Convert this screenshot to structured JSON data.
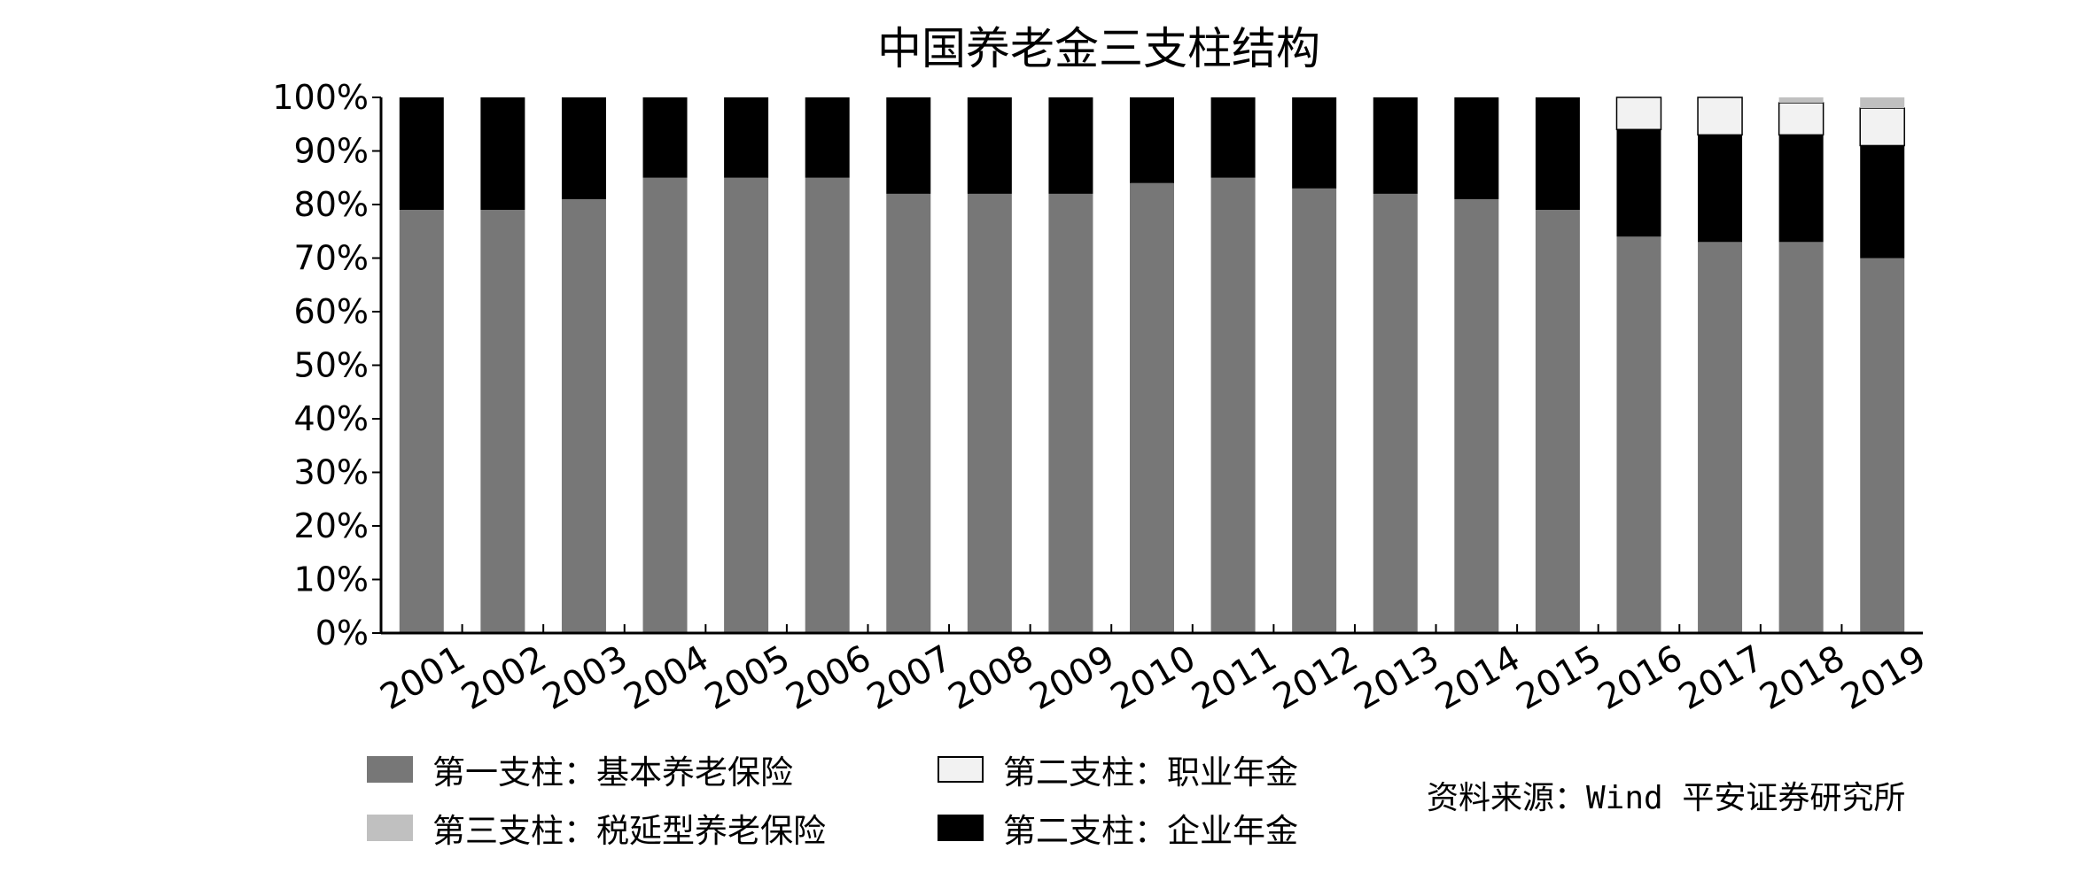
{
  "chart_data": {
    "type": "bar",
    "stacked": true,
    "title": "中国养老金三支柱结构",
    "categories": [
      "2001",
      "2002",
      "2003",
      "2004",
      "2005",
      "2006",
      "2007",
      "2008",
      "2009",
      "2010",
      "2011",
      "2012",
      "2013",
      "2014",
      "2015",
      "2016",
      "2017",
      "2018",
      "2019"
    ],
    "series": [
      {
        "key": "basic",
        "name": "第一支柱：基本养老保险",
        "color": "#777777",
        "values": [
          79,
          79,
          81,
          85,
          85,
          85,
          82,
          82,
          82,
          84,
          85,
          83,
          82,
          81,
          79,
          74,
          73,
          73,
          70
        ]
      },
      {
        "key": "enterprise",
        "name": "第二支柱：企业年金",
        "color": "#000000",
        "values": [
          21,
          21,
          19,
          15,
          15,
          15,
          18,
          18,
          18,
          16,
          15,
          17,
          18,
          19,
          21,
          20,
          20,
          20,
          21
        ]
      },
      {
        "key": "occupational",
        "name": "第二支柱：职业年金",
        "color": "#f2f2f2",
        "values": [
          0,
          0,
          0,
          0,
          0,
          0,
          0,
          0,
          0,
          0,
          0,
          0,
          0,
          0,
          0,
          6,
          7,
          6,
          7
        ]
      },
      {
        "key": "tax_deferred",
        "name": "第三支柱：税延型养老保险",
        "color": "#c0c0c0",
        "values": [
          0,
          0,
          0,
          0,
          0,
          0,
          0,
          0,
          0,
          0,
          0,
          0,
          0,
          0,
          0,
          0,
          0,
          1,
          2
        ]
      }
    ],
    "ylim": [
      0,
      100
    ],
    "yticks": [
      0,
      10,
      20,
      30,
      40,
      50,
      60,
      70,
      80,
      90,
      100
    ],
    "ytick_labels": [
      "0%",
      "10%",
      "20%",
      "30%",
      "40%",
      "50%",
      "60%",
      "70%",
      "80%",
      "90%",
      "100%"
    ],
    "grid": false,
    "legend_position": "bottom-left"
  },
  "legend": {
    "basic": "第一支柱：基本养老保险",
    "tax_deferred": "第三支柱：税延型养老保险",
    "occupational": "第二支柱：职业年金",
    "enterprise": "第二支柱：企业年金"
  },
  "source": "资料来源：Wind 平安证券研究所"
}
